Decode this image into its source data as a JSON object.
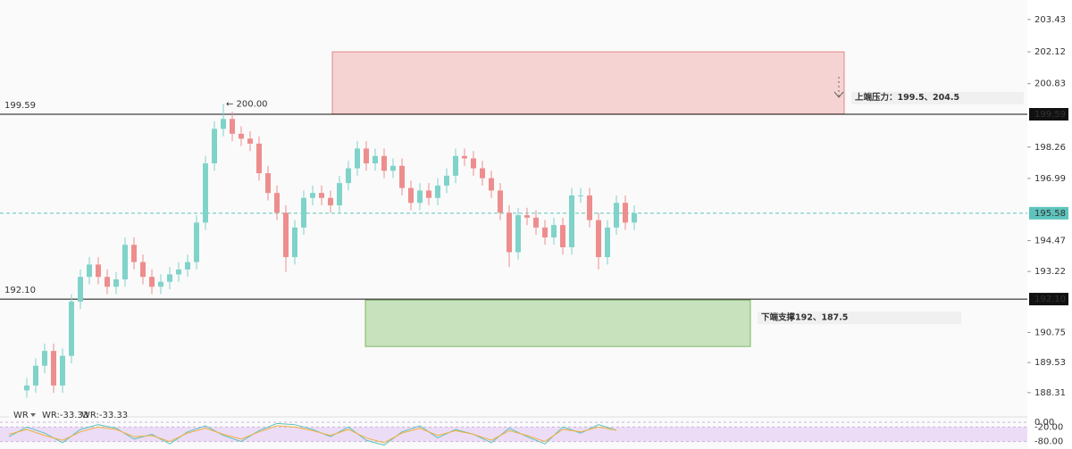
{
  "chart_data": {
    "type": "candlestick",
    "open": [
      188.4,
      188.6,
      189.4,
      190.0,
      188.6,
      189.8,
      192.0,
      193.0,
      193.5,
      193.0,
      192.6,
      192.9,
      194.3,
      193.6,
      193.0,
      192.6,
      192.8,
      193.1,
      193.3,
      193.6,
      195.2,
      197.6,
      199.0,
      199.4,
      198.8,
      198.6,
      198.4,
      197.2,
      196.4,
      195.6,
      193.8,
      195.0,
      196.2,
      196.4,
      196.2,
      195.9,
      196.8,
      197.4,
      198.2,
      197.6,
      197.9,
      197.3,
      197.5,
      196.6,
      196.0,
      196.5,
      196.2,
      196.7,
      197.1,
      197.9,
      197.8,
      197.4,
      197.0,
      196.5,
      195.6,
      194.0,
      195.5,
      195.4,
      195.0,
      194.6,
      195.1,
      194.2,
      196.3,
      196.3,
      195.3,
      193.8,
      195.0,
      196.0,
      195.2
    ],
    "high": [
      188.9,
      189.7,
      190.3,
      190.3,
      190.1,
      192.3,
      193.3,
      193.8,
      193.8,
      193.3,
      193.2,
      194.6,
      194.6,
      193.9,
      193.3,
      193.1,
      193.4,
      193.6,
      193.9,
      195.5,
      197.9,
      199.3,
      200.0,
      199.7,
      199.1,
      198.9,
      198.7,
      197.5,
      196.7,
      195.9,
      195.3,
      196.5,
      196.7,
      196.7,
      196.5,
      197.1,
      197.7,
      198.5,
      198.5,
      198.2,
      198.2,
      197.8,
      197.8,
      196.9,
      196.8,
      196.8,
      197.0,
      197.4,
      198.2,
      198.2,
      198.1,
      197.7,
      197.3,
      196.8,
      195.9,
      195.8,
      195.8,
      195.7,
      195.3,
      195.4,
      195.4,
      196.6,
      196.6,
      196.6,
      195.6,
      195.3,
      196.3,
      196.3,
      195.9
    ],
    "low": [
      188.1,
      188.3,
      189.1,
      188.3,
      188.3,
      189.5,
      191.7,
      192.7,
      192.7,
      192.3,
      192.3,
      192.6,
      193.3,
      192.7,
      192.3,
      192.3,
      192.5,
      192.8,
      193.0,
      193.3,
      194.9,
      197.3,
      198.7,
      198.5,
      198.3,
      198.1,
      196.9,
      196.1,
      195.3,
      193.2,
      193.5,
      194.7,
      195.9,
      195.9,
      195.6,
      195.6,
      196.5,
      197.1,
      197.3,
      197.3,
      197.0,
      197.0,
      196.3,
      195.7,
      195.7,
      195.9,
      195.9,
      196.4,
      196.8,
      197.5,
      197.1,
      196.7,
      196.2,
      195.3,
      193.4,
      193.7,
      195.1,
      194.7,
      194.3,
      194.3,
      193.9,
      193.9,
      196.0,
      195.0,
      193.3,
      193.5,
      194.7,
      194.9,
      194.9
    ],
    "close": [
      188.6,
      189.4,
      190.0,
      188.6,
      189.8,
      192.0,
      193.0,
      193.5,
      193.0,
      192.6,
      192.9,
      194.3,
      193.6,
      193.0,
      192.6,
      192.8,
      193.1,
      193.3,
      193.6,
      195.2,
      197.6,
      199.0,
      199.4,
      198.8,
      198.6,
      198.4,
      197.2,
      196.4,
      195.6,
      193.8,
      195.0,
      196.2,
      196.4,
      196.2,
      195.9,
      196.8,
      197.4,
      198.2,
      197.6,
      197.9,
      197.3,
      197.5,
      196.6,
      196.0,
      196.5,
      196.2,
      196.7,
      197.1,
      197.9,
      197.8,
      197.4,
      197.0,
      196.5,
      195.6,
      194.0,
      195.5,
      195.4,
      195.0,
      194.6,
      195.1,
      194.2,
      196.3,
      196.3,
      195.3,
      193.8,
      195.0,
      196.0,
      195.2,
      195.58
    ],
    "up_color": "#7fd3c9",
    "down_color": "#ee8d8d",
    "ylim": [
      187.4,
      204.22
    ],
    "yticks": [
      203.43,
      202.12,
      200.83,
      198.26,
      196.99,
      194.47,
      193.22,
      190.75,
      189.53,
      188.31
    ],
    "levels": [
      {
        "value": 199.59,
        "label": "199.59"
      },
      {
        "value": 192.1,
        "label": "192.10"
      }
    ],
    "current": {
      "value": 195.58,
      "label": "195.58",
      "color": "#5cc4bc"
    },
    "annotation": {
      "value": 200,
      "label": "← 200.00"
    },
    "zones": [
      {
        "label": "上端压力：199.5、204.5",
        "top": 202.12,
        "bottom": 199.6,
        "x": [
          34.2,
          91.5
        ],
        "color": "#f5d3d3",
        "stroke": "#e07070",
        "text_color": "#4e9a22"
      },
      {
        "label": "下端支撑192、187.5",
        "top": 192.06,
        "bottom": 190.18,
        "x": [
          37.9,
          81.0
        ],
        "color": "#c8e2bd",
        "stroke": "#6aa84f",
        "text_color": "#4e9a22"
      }
    ],
    "indicator": {
      "name": "WR",
      "ylim": [
        -100,
        0
      ],
      "yticks": [
        {
          "value": 0,
          "label": "0.00"
        },
        {
          "value": -20,
          "label": "-20.00"
        },
        {
          "value": -80,
          "label": "-80.00"
        }
      ],
      "band": [
        -20,
        -80
      ],
      "series": [
        {
          "name": "WR:-33.33",
          "color": "#5cc4bc",
          "values": [
            -60,
            -20,
            -45,
            -85,
            -30,
            -10,
            -25,
            -70,
            -50,
            -90,
            -40,
            -15,
            -55,
            -80,
            -35,
            -5,
            -10,
            -30,
            -60,
            -20,
            -75,
            -95,
            -40,
            -15,
            -65,
            -30,
            -50,
            -85,
            -25,
            -60,
            -90,
            -20,
            -45,
            -10,
            -33.33
          ]
        },
        {
          "name": "WR:-33.33",
          "color": "#f2b13b",
          "values": [
            -50,
            -30,
            -55,
            -75,
            -40,
            -20,
            -30,
            -60,
            -55,
            -80,
            -45,
            -25,
            -50,
            -70,
            -40,
            -15,
            -20,
            -35,
            -55,
            -30,
            -65,
            -85,
            -45,
            -25,
            -55,
            -35,
            -50,
            -75,
            -35,
            -55,
            -80,
            -30,
            -40,
            -20,
            -33.33
          ]
        }
      ]
    }
  }
}
